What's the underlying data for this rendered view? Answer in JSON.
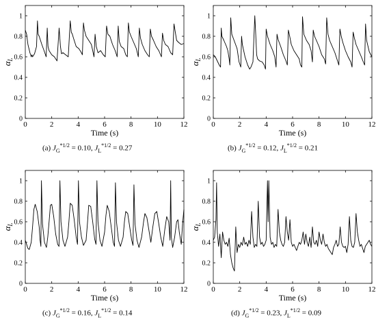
{
  "figure": {
    "panels": [
      {
        "caption": {
          "label": "(a)",
          "jg_value": "0.10",
          "jl_value": "0.27"
        }
      },
      {
        "caption": {
          "label": "(b)",
          "jg_value": "0.12",
          "jl_value": "0.21"
        }
      },
      {
        "caption": {
          "label": "(c)",
          "jg_value": "0.16",
          "jl_value": "0.14"
        }
      },
      {
        "caption": {
          "label": "(d)",
          "jg_value": "0.23",
          "jl_value": "0.09"
        }
      }
    ]
  },
  "chart_data": [
    {
      "type": "line",
      "xlabel": "Time (s)",
      "ylabel": "α_L",
      "ylabel_main": "α",
      "ylabel_sub": "L",
      "xlim": [
        0,
        12
      ],
      "ylim": [
        0,
        1.1
      ],
      "xticks": [
        0,
        2,
        4,
        6,
        8,
        10,
        12
      ],
      "yticks": [
        0,
        0.2,
        0.4,
        0.6,
        0.8,
        1
      ],
      "yticklabels": [
        "0",
        "0.2",
        "0.4",
        "0.6",
        "0.8",
        "1"
      ],
      "grid": false,
      "legend": "none",
      "series": [
        {
          "x": [
            0,
            0.1,
            0.2,
            0.35,
            0.45,
            0.5,
            0.55,
            0.7,
            0.85,
            0.92,
            0.97,
            1.05,
            1.25,
            1.42,
            1.58,
            1.66,
            1.72,
            1.8,
            2.0,
            2.2,
            2.4,
            2.56,
            2.66,
            2.74,
            2.85,
            3.05,
            3.25,
            3.4,
            3.48,
            3.56,
            3.65,
            3.85,
            4.05,
            4.2,
            4.32,
            4.4,
            4.47,
            4.6,
            4.8,
            5.0,
            5.2,
            5.28,
            5.37,
            5.5,
            5.7,
            5.9,
            6.05,
            6.15,
            6.25,
            6.4,
            6.6,
            6.8,
            6.95,
            7.03,
            7.11,
            7.25,
            7.45,
            7.6,
            7.72,
            7.8,
            7.88,
            8.0,
            8.2,
            8.4,
            8.55,
            8.63,
            8.72,
            8.85,
            9.05,
            9.25,
            9.38,
            9.46,
            9.55,
            9.7,
            9.9,
            10.1,
            10.3,
            10.38,
            10.47,
            10.6,
            10.8,
            11.0,
            11.15,
            11.25,
            11.35,
            11.45,
            11.6,
            11.8,
            12.0
          ],
          "y": [
            0.86,
            0.82,
            0.72,
            0.64,
            0.6,
            0.62,
            0.6,
            0.63,
            0.7,
            0.95,
            0.82,
            0.8,
            0.72,
            0.66,
            0.6,
            0.88,
            0.7,
            0.66,
            0.62,
            0.6,
            0.56,
            0.88,
            0.7,
            0.63,
            0.64,
            0.62,
            0.6,
            0.95,
            0.84,
            0.82,
            0.78,
            0.7,
            0.68,
            0.65,
            0.62,
            0.93,
            0.86,
            0.8,
            0.76,
            0.72,
            0.6,
            0.82,
            0.7,
            0.64,
            0.66,
            0.62,
            0.6,
            0.9,
            0.82,
            0.8,
            0.72,
            0.66,
            0.6,
            0.9,
            0.75,
            0.7,
            0.68,
            0.62,
            0.6,
            0.93,
            0.84,
            0.8,
            0.74,
            0.68,
            0.6,
            0.88,
            0.78,
            0.72,
            0.66,
            0.62,
            0.6,
            0.87,
            0.8,
            0.76,
            0.7,
            0.66,
            0.6,
            0.83,
            0.76,
            0.72,
            0.7,
            0.64,
            0.62,
            0.92,
            0.84,
            0.76,
            0.74,
            0.72,
            0.73
          ]
        }
      ]
    },
    {
      "type": "line",
      "xlabel": "Time (s)",
      "ylabel": "α_L",
      "ylabel_main": "α",
      "ylabel_sub": "L",
      "xlim": [
        0,
        12
      ],
      "ylim": [
        0,
        1.1
      ],
      "xticks": [
        0,
        2,
        4,
        6,
        8,
        10,
        12
      ],
      "yticks": [
        0,
        0.2,
        0.4,
        0.6,
        0.8,
        1
      ],
      "yticklabels": [
        "0",
        "0.2",
        "0.4",
        "0.6",
        "0.8",
        "1"
      ],
      "grid": false,
      "legend": "none",
      "series": [
        {
          "x": [
            0,
            0.15,
            0.3,
            0.45,
            0.55,
            0.6,
            0.65,
            0.8,
            1.0,
            1.1,
            1.2,
            1.25,
            1.32,
            1.4,
            1.6,
            1.8,
            1.95,
            2.08,
            2.14,
            2.2,
            2.4,
            2.6,
            2.75,
            2.85,
            3.0,
            3.14,
            3.2,
            3.28,
            3.35,
            3.5,
            3.7,
            3.85,
            3.95,
            4.0,
            4.1,
            4.3,
            4.5,
            4.65,
            4.75,
            4.82,
            4.9,
            5.1,
            5.3,
            5.5,
            5.6,
            5.68,
            5.78,
            5.9,
            6.1,
            6.3,
            6.5,
            6.6,
            6.7,
            6.75,
            6.85,
            7.05,
            7.25,
            7.4,
            7.5,
            7.56,
            7.66,
            7.8,
            8.0,
            8.2,
            8.4,
            8.5,
            8.58,
            8.68,
            8.8,
            9.0,
            9.2,
            9.4,
            9.5,
            9.58,
            9.68,
            9.8,
            10.0,
            10.2,
            10.4,
            10.5,
            10.58,
            10.68,
            10.8,
            11.0,
            11.2,
            11.35,
            11.45,
            11.52,
            11.6,
            11.8,
            12.0
          ],
          "y": [
            0.62,
            0.6,
            0.56,
            0.52,
            0.5,
            0.88,
            0.8,
            0.76,
            0.7,
            0.66,
            0.58,
            0.52,
            0.98,
            0.82,
            0.75,
            0.68,
            0.55,
            0.5,
            0.8,
            0.72,
            0.6,
            0.52,
            0.48,
            0.5,
            0.55,
            1.0,
            0.85,
            0.62,
            0.58,
            0.56,
            0.55,
            0.52,
            0.48,
            0.87,
            0.8,
            0.72,
            0.66,
            0.6,
            0.5,
            0.82,
            0.77,
            0.7,
            0.62,
            0.56,
            0.52,
            0.86,
            0.8,
            0.72,
            0.66,
            0.62,
            0.58,
            0.52,
            0.5,
            0.99,
            0.82,
            0.76,
            0.72,
            0.66,
            0.55,
            0.86,
            0.8,
            0.76,
            0.7,
            0.62,
            0.58,
            0.53,
            0.98,
            0.82,
            0.76,
            0.7,
            0.64,
            0.56,
            0.52,
            0.87,
            0.8,
            0.74,
            0.66,
            0.6,
            0.55,
            0.5,
            0.84,
            0.78,
            0.72,
            0.66,
            0.6,
            0.55,
            0.52,
            0.92,
            0.76,
            0.65,
            0.6
          ]
        }
      ]
    },
    {
      "type": "line",
      "xlabel": "Time (s)",
      "ylabel": "α_L",
      "ylabel_main": "α",
      "ylabel_sub": "L",
      "xlim": [
        0,
        12
      ],
      "ylim": [
        0,
        1.1
      ],
      "xticks": [
        0,
        2,
        4,
        6,
        8,
        10,
        12
      ],
      "yticks": [
        0,
        0.2,
        0.4,
        0.6,
        0.8,
        1
      ],
      "yticklabels": [
        "0",
        "0.2",
        "0.4",
        "0.6",
        "0.8",
        "1"
      ],
      "grid": false,
      "legend": "none",
      "series": [
        {
          "x": [
            0,
            0.1,
            0.2,
            0.3,
            0.45,
            0.55,
            0.65,
            0.75,
            0.9,
            1.05,
            1.12,
            1.18,
            1.22,
            1.3,
            1.45,
            1.6,
            1.7,
            1.8,
            1.9,
            2.0,
            2.15,
            2.3,
            2.45,
            2.55,
            2.62,
            2.7,
            2.85,
            3.0,
            3.2,
            3.3,
            3.4,
            3.55,
            3.7,
            3.85,
            3.95,
            4.02,
            4.1,
            4.25,
            4.4,
            4.6,
            4.7,
            4.8,
            4.95,
            5.1,
            5.25,
            5.35,
            5.42,
            5.5,
            5.65,
            5.8,
            6.0,
            6.1,
            6.2,
            6.35,
            6.5,
            6.65,
            6.75,
            6.82,
            6.9,
            7.05,
            7.2,
            7.4,
            7.5,
            7.6,
            7.75,
            7.9,
            8.05,
            8.15,
            8.22,
            8.3,
            8.45,
            8.6,
            8.8,
            8.95,
            9.05,
            9.2,
            9.35,
            9.5,
            9.65,
            9.8,
            9.95,
            10.1,
            10.25,
            10.4,
            10.55,
            10.7,
            10.85,
            10.95,
            11.0,
            11.05,
            11.15,
            11.3,
            11.45,
            11.55,
            11.65,
            11.8,
            11.9,
            12.0
          ],
          "y": [
            0.42,
            0.38,
            0.34,
            0.33,
            0.4,
            0.55,
            0.72,
            0.77,
            0.7,
            0.55,
            0.42,
            0.36,
            1.0,
            0.58,
            0.4,
            0.35,
            0.45,
            0.6,
            0.76,
            0.77,
            0.65,
            0.48,
            0.38,
            0.36,
            1.0,
            0.6,
            0.42,
            0.36,
            0.45,
            0.6,
            0.78,
            0.76,
            0.62,
            0.45,
            0.38,
            1.0,
            0.6,
            0.45,
            0.37,
            0.42,
            0.58,
            0.76,
            0.75,
            0.6,
            0.43,
            0.38,
            1.0,
            0.6,
            0.42,
            0.36,
            0.5,
            0.66,
            0.76,
            0.7,
            0.55,
            0.4,
            0.36,
            0.98,
            0.6,
            0.42,
            0.36,
            0.45,
            0.6,
            0.7,
            0.68,
            0.55,
            0.42,
            0.37,
            0.96,
            0.58,
            0.42,
            0.35,
            0.45,
            0.6,
            0.68,
            0.64,
            0.52,
            0.4,
            0.55,
            0.68,
            0.7,
            0.58,
            0.45,
            0.36,
            0.52,
            0.65,
            0.6,
            0.42,
            1.0,
            0.45,
            0.35,
            0.45,
            0.6,
            0.62,
            0.5,
            0.38,
            0.58,
            0.72
          ]
        }
      ]
    },
    {
      "type": "line",
      "xlabel": "Time (s)",
      "ylabel": "α_L",
      "ylabel_main": "α",
      "ylabel_sub": "L",
      "xlim": [
        0,
        12
      ],
      "ylim": [
        0,
        1.1
      ],
      "xticks": [
        0,
        2,
        4,
        6,
        8,
        10,
        12
      ],
      "yticks": [
        0,
        0.2,
        0.4,
        0.6,
        0.8,
        1
      ],
      "yticklabels": [
        "0",
        "0.2",
        "0.4",
        "0.6",
        "0.8",
        "1"
      ],
      "grid": false,
      "legend": "none",
      "series": [
        {
          "x": [
            0,
            0.1,
            0.2,
            0.25,
            0.3,
            0.4,
            0.5,
            0.6,
            0.7,
            0.8,
            0.9,
            1.0,
            1.1,
            1.2,
            1.3,
            1.4,
            1.5,
            1.6,
            1.7,
            1.8,
            1.9,
            2.0,
            2.1,
            2.2,
            2.3,
            2.4,
            2.5,
            2.6,
            2.7,
            2.8,
            2.9,
            3.0,
            3.1,
            3.2,
            3.3,
            3.4,
            3.5,
            3.6,
            3.7,
            3.8,
            3.9,
            4.0,
            4.1,
            4.15,
            4.2,
            4.3,
            4.4,
            4.5,
            4.6,
            4.7,
            4.8,
            4.9,
            5.0,
            5.1,
            5.2,
            5.3,
            5.4,
            5.5,
            5.6,
            5.7,
            5.8,
            5.9,
            6.0,
            6.1,
            6.2,
            6.3,
            6.4,
            6.5,
            6.6,
            6.7,
            6.8,
            6.9,
            7.0,
            7.1,
            7.2,
            7.3,
            7.4,
            7.5,
            7.6,
            7.7,
            7.8,
            7.9,
            8.0,
            8.1,
            8.2,
            8.3,
            8.4,
            8.5,
            8.6,
            8.7,
            8.8,
            8.9,
            9.0,
            9.1,
            9.2,
            9.3,
            9.4,
            9.5,
            9.6,
            9.7,
            9.8,
            9.9,
            10.0,
            10.1,
            10.2,
            10.3,
            10.4,
            10.5,
            10.6,
            10.7,
            10.8,
            10.9,
            11.0,
            11.1,
            11.2,
            11.3,
            11.4,
            11.5,
            11.6,
            11.7,
            11.8,
            11.9,
            12.0
          ],
          "y": [
            0.42,
            0.45,
            0.62,
            0.98,
            0.5,
            0.36,
            0.48,
            0.25,
            0.5,
            0.42,
            0.38,
            0.4,
            0.36,
            0.44,
            0.28,
            0.2,
            0.15,
            0.12,
            0.55,
            0.3,
            0.38,
            0.35,
            0.4,
            0.37,
            0.45,
            0.38,
            0.4,
            0.36,
            0.42,
            0.38,
            0.7,
            0.45,
            0.35,
            0.38,
            0.36,
            0.8,
            0.45,
            0.38,
            0.4,
            0.36,
            0.38,
            0.42,
            1.0,
            0.6,
            1.0,
            0.45,
            0.38,
            0.4,
            0.35,
            0.38,
            0.36,
            0.72,
            0.5,
            0.42,
            0.38,
            0.36,
            0.4,
            0.65,
            0.5,
            0.42,
            0.62,
            0.4,
            0.36,
            0.38,
            0.35,
            0.32,
            0.36,
            0.4,
            0.38,
            0.42,
            0.5,
            0.38,
            0.48,
            0.4,
            0.36,
            0.45,
            0.35,
            0.55,
            0.4,
            0.38,
            0.42,
            0.36,
            0.5,
            0.42,
            0.38,
            0.48,
            0.4,
            0.36,
            0.38,
            0.34,
            0.32,
            0.3,
            0.28,
            0.35,
            0.38,
            0.42,
            0.36,
            0.38,
            0.55,
            0.4,
            0.36,
            0.35,
            0.36,
            0.3,
            0.38,
            0.65,
            0.42,
            0.36,
            0.35,
            0.4,
            0.68,
            0.5,
            0.42,
            0.36,
            0.38,
            0.34,
            0.3,
            0.36,
            0.38,
            0.4,
            0.42,
            0.38,
            0.36
          ]
        }
      ]
    }
  ]
}
